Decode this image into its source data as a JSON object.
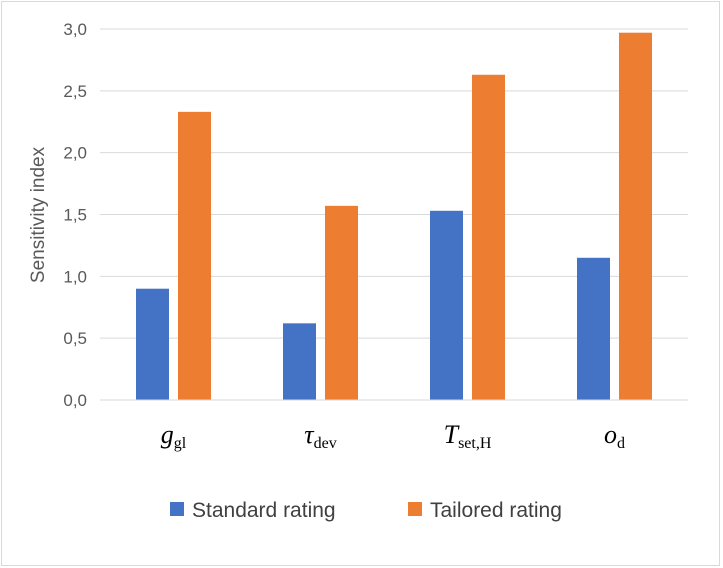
{
  "chart_data": {
    "type": "bar",
    "ylabel": "Sensitivity index",
    "ylim": [
      0,
      3.0
    ],
    "yticks": [
      "0,0",
      "0,5",
      "1,0",
      "1,5",
      "2,0",
      "2,5",
      "3,0"
    ],
    "ytick_values": [
      0,
      0.5,
      1.0,
      1.5,
      2.0,
      2.5,
      3.0
    ],
    "categories": [
      {
        "main": "g",
        "sub": "gl"
      },
      {
        "main": "τ",
        "sub": "dev"
      },
      {
        "main": "T",
        "sub": "set,H"
      },
      {
        "main": "o",
        "sub": "d"
      }
    ],
    "series": [
      {
        "name": "Standard rating",
        "color": "#4472c4",
        "values": [
          0.9,
          0.62,
          1.53,
          1.15
        ]
      },
      {
        "name": "Tailored rating",
        "color": "#ed7d31",
        "values": [
          2.33,
          1.57,
          2.63,
          2.97
        ]
      }
    ],
    "grid": true,
    "legend": "bottom"
  }
}
